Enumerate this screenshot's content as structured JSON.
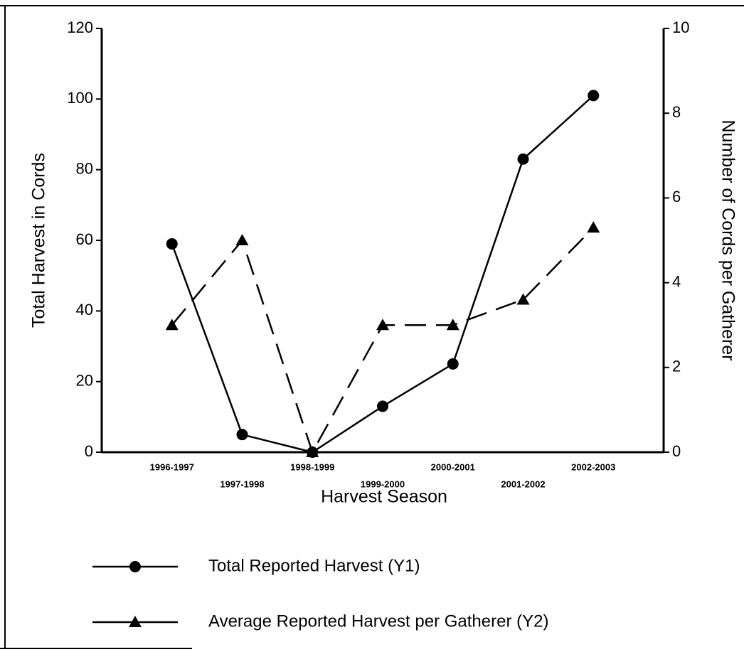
{
  "chart_data": {
    "type": "line",
    "x_label": "Harvest Season",
    "y_label": "Total Harvest in Cords",
    "y2_label": "Number of Cords per Gatherer",
    "categories": [
      "1996-1997",
      "1997-1998",
      "1998-1999",
      "1999-2000",
      "2000-2001",
      "2001-2002",
      "2002-2003"
    ],
    "series": [
      {
        "name": "Total Reported Harvest (Y1)",
        "color": "#000000",
        "marker": "circle",
        "dashed": false,
        "values": [
          59,
          5,
          0,
          13,
          25,
          83,
          101
        ]
      },
      {
        "name": "Average Reported Harvest per Gatherer (Y2)",
        "color": "#000000",
        "marker": "triangle",
        "dashed": true,
        "axis": "y2",
        "values": [
          3,
          5,
          0,
          3,
          3,
          3.6,
          5.3
        ]
      }
    ],
    "ylim": [
      0,
      120
    ],
    "yticks": [
      0,
      20,
      40,
      60,
      80,
      100,
      120
    ],
    "y2lim": [
      0,
      10
    ],
    "y2ticks": [
      0,
      2,
      4,
      6,
      8,
      10
    ],
    "grid": false
  }
}
